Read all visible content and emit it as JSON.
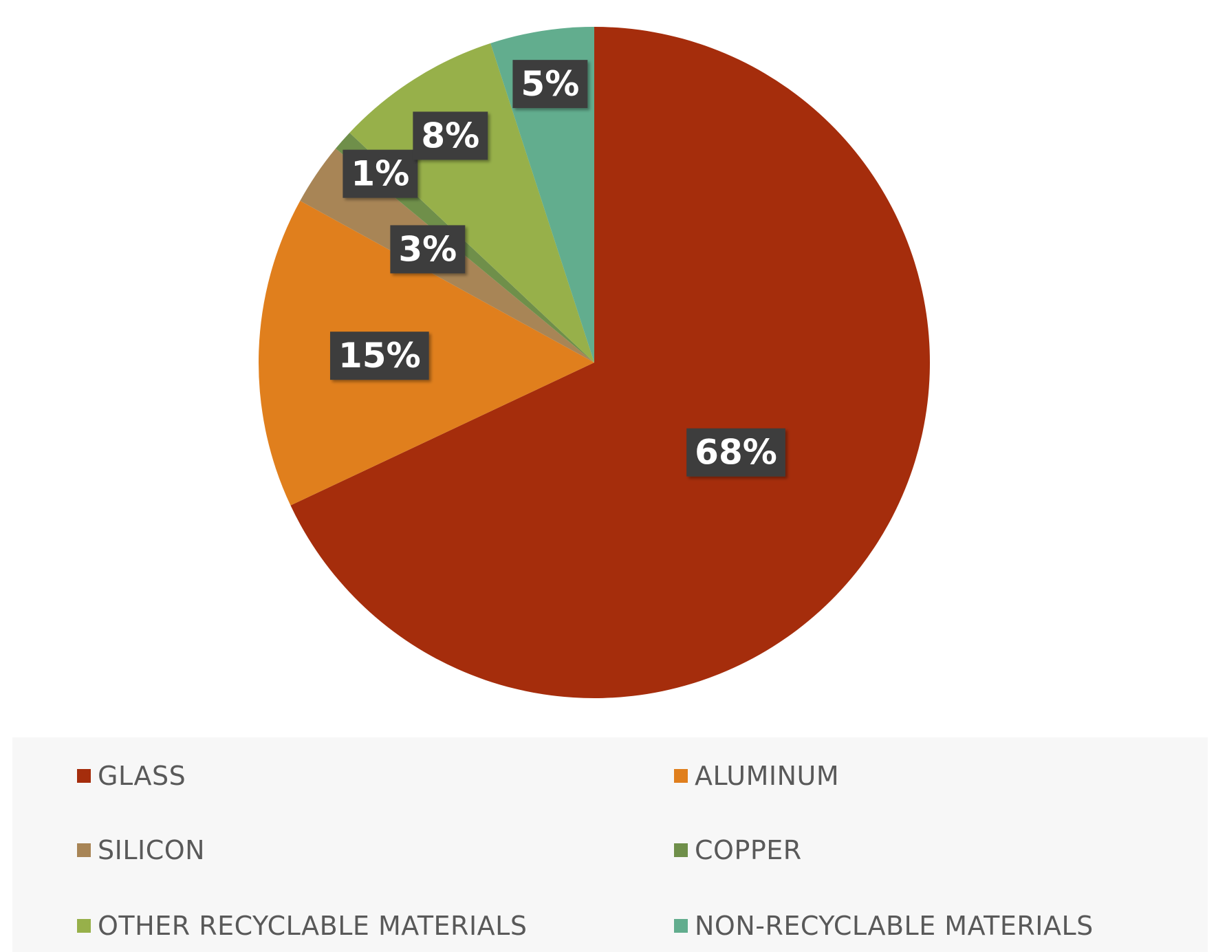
{
  "chart_data": {
    "type": "pie",
    "title": "",
    "start_angle_deg": 0,
    "direction": "clockwise",
    "legend_position": "bottom",
    "slices": [
      {
        "name": "GLASS",
        "value": 68,
        "label": "68%",
        "color": "#a52d0c"
      },
      {
        "name": "ALUMINUM",
        "value": 15,
        "label": "15%",
        "color": "#e07f1d"
      },
      {
        "name": "SILICON",
        "value": 3,
        "label": "3%",
        "color": "#a88556"
      },
      {
        "name": "COPPER",
        "value": 1,
        "label": "1%",
        "color": "#6f8f4a"
      },
      {
        "name": "OTHER RECYCLABLE MATERIALS",
        "value": 8,
        "label": "8%",
        "color": "#97b04a"
      },
      {
        "name": "NON-RECYCLABLE MATERIALS",
        "value": 5,
        "label": "5%",
        "color": "#62ad8e"
      }
    ],
    "label_box_color": "#3d3d3d"
  }
}
